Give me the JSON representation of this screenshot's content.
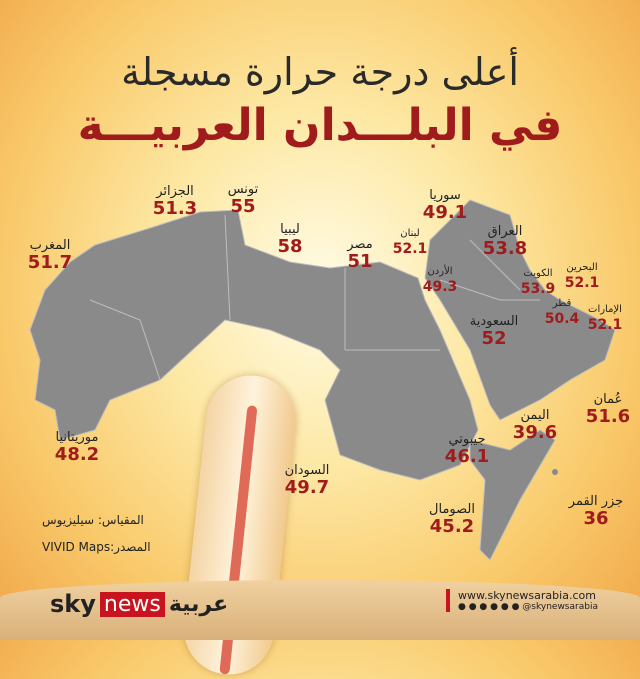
{
  "title": {
    "line1": "أعلى درجة حرارة مسجلة",
    "line2": "في البلـــدان العربيـــة"
  },
  "countries": [
    {
      "name": "المغرب",
      "value": "51.7"
    },
    {
      "name": "الجزائر",
      "value": "51.3"
    },
    {
      "name": "تونس",
      "value": "55"
    },
    {
      "name": "ليبيا",
      "value": "58"
    },
    {
      "name": "مصر",
      "value": "51"
    },
    {
      "name": "سوريا",
      "value": "49.1"
    },
    {
      "name": "لبنان",
      "value": "52.1"
    },
    {
      "name": "الأردن",
      "value": "49.3"
    },
    {
      "name": "العراق",
      "value": "53.8"
    },
    {
      "name": "الكويت",
      "value": "53.9"
    },
    {
      "name": "البحرين",
      "value": "52.1"
    },
    {
      "name": "قطر",
      "value": "50.4"
    },
    {
      "name": "الإمارات",
      "value": "52.1"
    },
    {
      "name": "السعودية",
      "value": "52"
    },
    {
      "name": "اليمن",
      "value": "39.6"
    },
    {
      "name": "عُمان",
      "value": "51.6"
    },
    {
      "name": "جيبوتي",
      "value": "46.1"
    },
    {
      "name": "الصومال",
      "value": "45.2"
    },
    {
      "name": "جزر القمر",
      "value": "36"
    },
    {
      "name": "موريتانيا",
      "value": "48.2"
    },
    {
      "name": "السودان",
      "value": "49.7"
    }
  ],
  "notes": {
    "scale": "المقياس: سيليزيوس",
    "source": "المصدر:VIVID Maps"
  },
  "brand": {
    "sky": "sky",
    "news": "news",
    "arabic": "عربية"
  },
  "footer": {
    "url": "www.skynewsarabia.com",
    "handle": "@skynewsarabia"
  },
  "colors": {
    "map": "#8a8a8a",
    "value": "#a01c1c",
    "brand_red": "#c8141e"
  }
}
